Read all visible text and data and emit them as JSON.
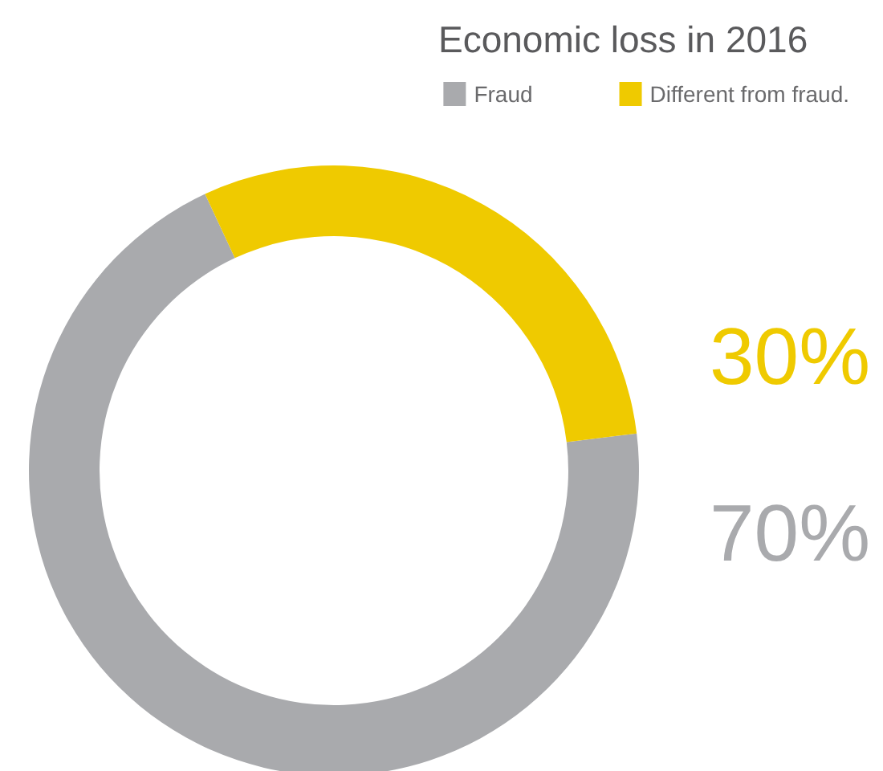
{
  "chart_data": {
    "type": "donut",
    "title": "Economic loss in 2016",
    "categories": [
      "Fraud",
      "Different from fraud."
    ],
    "values": [
      70,
      30
    ],
    "colors": [
      "#a9aaad",
      "#efca00"
    ],
    "value_labels": [
      "70%",
      "30%"
    ],
    "legend": "top right"
  }
}
